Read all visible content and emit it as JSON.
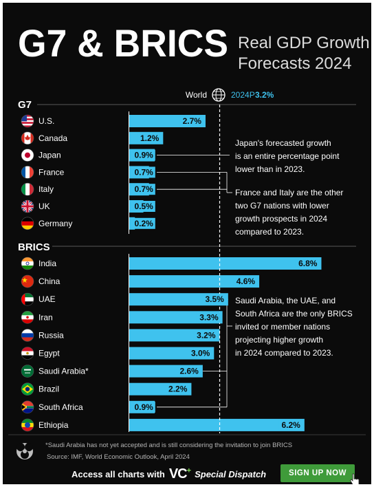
{
  "title_main": "G7 & BRICS",
  "title_sub_line1": "Real GDP Growth",
  "title_sub_line2": "Forecasts 2024",
  "world_label": "World",
  "world_period": "2024P",
  "world_value_label": "3.2%",
  "colors": {
    "bar": "#3fc2ee",
    "background": "#0b0b0b",
    "signup": "#3f9b3a"
  },
  "chart_data": {
    "type": "bar",
    "orientation": "horizontal",
    "reference": {
      "label": "World",
      "value": 3.2
    },
    "groups": [
      {
        "name": "G7",
        "categories": [
          "U.S.",
          "Canada",
          "Japan",
          "France",
          "Italy",
          "UK",
          "Germany"
        ],
        "values": [
          2.7,
          1.2,
          0.9,
          0.7,
          0.7,
          0.5,
          0.2
        ],
        "value_labels": [
          "2.7%",
          "1.2%",
          "0.9%",
          "0.7%",
          "0.7%",
          "0.5%",
          "0.2%"
        ]
      },
      {
        "name": "BRICS",
        "categories": [
          "India",
          "China",
          "UAE",
          "Iran",
          "Russia",
          "Egypt",
          "Saudi Arabia*",
          "Brazil",
          "South Africa",
          "Ethiopia"
        ],
        "values": [
          6.8,
          4.6,
          3.5,
          3.3,
          3.2,
          3.0,
          2.6,
          2.2,
          0.9,
          6.2
        ],
        "value_labels": [
          "6.8%",
          "4.6%",
          "3.5%",
          "3.3%",
          "3.2%",
          "3.0%",
          "2.6%",
          "2.2%",
          "0.9%",
          "6.2%"
        ]
      }
    ],
    "annotations": [
      {
        "target": "Japan",
        "lines": [
          "Japan's forecasted growth",
          "is an entire percentage point",
          "lower than in 2023."
        ]
      },
      {
        "target": [
          "France",
          "Italy"
        ],
        "lines": [
          "France and Italy are the other",
          "two G7 nations with lower",
          "growth prospects in 2024",
          "compared to 2023."
        ]
      },
      {
        "target": [
          "UAE",
          "Saudi Arabia*",
          "South Africa"
        ],
        "lines": [
          "Saudi Arabia, the UAE, and",
          "South Africa are the only BRICS",
          "invited or member nations",
          "projecting higher growth",
          "in 2024 compared to 2023."
        ]
      }
    ]
  },
  "footnote": "*Saudi Arabia has not yet accepted and is still considering the invitation to join BRICS",
  "source": "Source: IMF, World Economic Outlook, April 2024",
  "access_text": "Access all charts with",
  "brand_vc": "VC",
  "brand_plus": "+",
  "brand_dispatch": "Special Dispatch",
  "signup_label": "SIGN UP NOW"
}
